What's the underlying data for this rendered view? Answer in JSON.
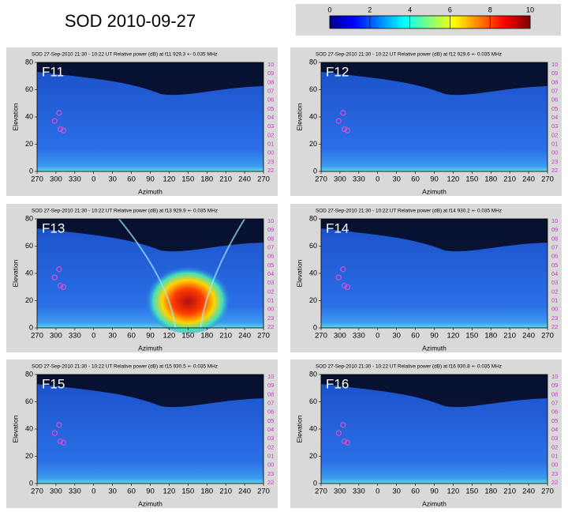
{
  "title": "SOD 2010-09-27",
  "colorbar": {
    "lim": [
      0,
      10
    ],
    "ticks": [
      0,
      2,
      4,
      6,
      8,
      10
    ]
  },
  "chart_data": [
    {
      "type": "heatmap",
      "title": "SOD 27-Sep-2010 21:30 - 10:22 UT Relative power (dB) at f11 929.3 +- 0.035 MHz",
      "label": "F11",
      "x_label": "Azimuth",
      "y_label": "Elevation",
      "xlim": [
        270,
        630
      ],
      "xticks": [
        270,
        300,
        330,
        {
          "value": 360,
          "label": "0"
        },
        {
          "value": 390,
          "label": "30"
        },
        {
          "value": 420,
          "label": "60"
        },
        {
          "value": 450,
          "label": "90"
        },
        {
          "value": 480,
          "label": "120"
        },
        {
          "value": 510,
          "label": "150"
        },
        {
          "value": 540,
          "label": "180"
        },
        {
          "value": 570,
          "label": "210"
        },
        {
          "value": 600,
          "label": "240"
        },
        {
          "value": 630,
          "label": "270"
        }
      ],
      "ylim": [
        0,
        80
      ],
      "yticks": [
        0,
        20,
        40,
        60,
        80
      ],
      "hour_labels": [
        "10",
        "09",
        "08",
        "07",
        "06",
        "05",
        "04",
        "03",
        "02",
        "01",
        "00",
        "23",
        "22"
      ],
      "points": {
        "color": "#d24fd2",
        "x": [
          298,
          305,
          307,
          312
        ],
        "y": [
          37,
          43,
          31,
          30
        ]
      }
    },
    {
      "type": "heatmap",
      "title": "SOD 27-Sep-2010 21:30 - 10:22 UT Relative power (dB) at f12 929.6 +- 0.035 MHz",
      "label": "F12",
      "x_label": "Azimuth",
      "y_label": "Elevation",
      "xlim": [
        270,
        630
      ],
      "xticks": [
        270,
        300,
        330,
        {
          "value": 360,
          "label": "0"
        },
        {
          "value": 390,
          "label": "30"
        },
        {
          "value": 420,
          "label": "60"
        },
        {
          "value": 450,
          "label": "90"
        },
        {
          "value": 480,
          "label": "120"
        },
        {
          "value": 510,
          "label": "150"
        },
        {
          "value": 540,
          "label": "180"
        },
        {
          "value": 570,
          "label": "210"
        },
        {
          "value": 600,
          "label": "240"
        },
        {
          "value": 630,
          "label": "270"
        }
      ],
      "ylim": [
        0,
        80
      ],
      "yticks": [
        0,
        20,
        40,
        60,
        80
      ],
      "hour_labels": [
        "10",
        "09",
        "08",
        "07",
        "06",
        "05",
        "04",
        "03",
        "02",
        "01",
        "00",
        "23",
        "22"
      ],
      "points": {
        "color": "#d24fd2",
        "x": [
          298,
          305,
          307,
          312
        ],
        "y": [
          37,
          43,
          31,
          30
        ]
      }
    },
    {
      "type": "heatmap",
      "title": "SOD 27-Sep-2010 21:30 - 10:22 UT Relative power (dB) at f13 929.9 +- 0.035 MHz",
      "label": "F13",
      "x_label": "Azimuth",
      "y_label": "Elevation",
      "xlim": [
        270,
        630
      ],
      "xticks": [
        270,
        300,
        330,
        {
          "value": 360,
          "label": "0"
        },
        {
          "value": 390,
          "label": "30"
        },
        {
          "value": 420,
          "label": "60"
        },
        {
          "value": 450,
          "label": "90"
        },
        {
          "value": 480,
          "label": "120"
        },
        {
          "value": 510,
          "label": "150"
        },
        {
          "value": 540,
          "label": "180"
        },
        {
          "value": 570,
          "label": "210"
        },
        {
          "value": 600,
          "label": "240"
        },
        {
          "value": 630,
          "label": "270"
        }
      ],
      "ylim": [
        0,
        80
      ],
      "yticks": [
        0,
        20,
        40,
        60,
        80
      ],
      "hour_labels": [
        "10",
        "09",
        "08",
        "07",
        "06",
        "05",
        "04",
        "03",
        "02",
        "01",
        "00",
        "23",
        "22"
      ],
      "points": {
        "color": "#d24fd2",
        "x": [
          298,
          305,
          307,
          312
        ],
        "y": [
          37,
          43,
          31,
          30
        ]
      }
    },
    {
      "type": "heatmap",
      "title": "SOD 27-Sep-2010 21:30 - 10:22 UT Relative power (dB) at f14 930.2 +- 0.035 MHz",
      "label": "F14",
      "x_label": "Azimuth",
      "y_label": "Elevation",
      "xlim": [
        270,
        630
      ],
      "xticks": [
        270,
        300,
        330,
        {
          "value": 360,
          "label": "0"
        },
        {
          "value": 390,
          "label": "30"
        },
        {
          "value": 420,
          "label": "60"
        },
        {
          "value": 450,
          "label": "90"
        },
        {
          "value": 480,
          "label": "120"
        },
        {
          "value": 510,
          "label": "150"
        },
        {
          "value": 540,
          "label": "180"
        },
        {
          "value": 570,
          "label": "210"
        },
        {
          "value": 600,
          "label": "240"
        },
        {
          "value": 630,
          "label": "270"
        }
      ],
      "ylim": [
        0,
        80
      ],
      "yticks": [
        0,
        20,
        40,
        60,
        80
      ],
      "hour_labels": [
        "10",
        "09",
        "08",
        "07",
        "06",
        "05",
        "04",
        "03",
        "02",
        "01",
        "00",
        "23",
        "22"
      ],
      "points": {
        "color": "#d24fd2",
        "x": [
          298,
          305,
          307,
          312
        ],
        "y": [
          37,
          43,
          31,
          30
        ]
      }
    },
    {
      "type": "heatmap",
      "title": "SOD 27-Sep-2010 21:30 - 10:22 UT Relative power (dB) at f15 930.5 +- 0.035 MHz",
      "label": "F15",
      "x_label": "Azimuth",
      "y_label": "Elevation",
      "xlim": [
        270,
        630
      ],
      "xticks": [
        270,
        300,
        330,
        {
          "value": 360,
          "label": "0"
        },
        {
          "value": 390,
          "label": "30"
        },
        {
          "value": 420,
          "label": "60"
        },
        {
          "value": 450,
          "label": "90"
        },
        {
          "value": 480,
          "label": "120"
        },
        {
          "value": 510,
          "label": "150"
        },
        {
          "value": 540,
          "label": "180"
        },
        {
          "value": 570,
          "label": "210"
        },
        {
          "value": 600,
          "label": "240"
        },
        {
          "value": 630,
          "label": "270"
        }
      ],
      "ylim": [
        0,
        80
      ],
      "yticks": [
        0,
        20,
        40,
        60,
        80
      ],
      "hour_labels": [
        "10",
        "09",
        "08",
        "07",
        "06",
        "05",
        "04",
        "03",
        "02",
        "01",
        "00",
        "23",
        "22"
      ],
      "points": {
        "color": "#d24fd2",
        "x": [
          298,
          305,
          307,
          312
        ],
        "y": [
          37,
          43,
          31,
          30
        ]
      }
    },
    {
      "type": "heatmap",
      "title": "SOD 27-Sep-2010 21:30 - 10:22 UT Relative power (dB) at f16 930.8 +- 0.035 MHz",
      "label": "F16",
      "x_label": "Azimuth",
      "y_label": "Elevation",
      "xlim": [
        270,
        630
      ],
      "xticks": [
        270,
        300,
        330,
        {
          "value": 360,
          "label": "0"
        },
        {
          "value": 390,
          "label": "30"
        },
        {
          "value": 420,
          "label": "60"
        },
        {
          "value": 450,
          "label": "90"
        },
        {
          "value": 480,
          "label": "120"
        },
        {
          "value": 510,
          "label": "150"
        },
        {
          "value": 540,
          "label": "180"
        },
        {
          "value": 570,
          "label": "210"
        },
        {
          "value": 600,
          "label": "240"
        },
        {
          "value": 630,
          "label": "270"
        }
      ],
      "ylim": [
        0,
        80
      ],
      "yticks": [
        0,
        20,
        40,
        60,
        80
      ],
      "hour_labels": [
        "10",
        "09",
        "08",
        "07",
        "06",
        "05",
        "04",
        "03",
        "02",
        "01",
        "00",
        "23",
        "22"
      ],
      "points": {
        "color": "#d24fd2",
        "x": [
          298,
          305,
          307,
          312
        ],
        "y": [
          37,
          43,
          31,
          30
        ]
      }
    }
  ]
}
